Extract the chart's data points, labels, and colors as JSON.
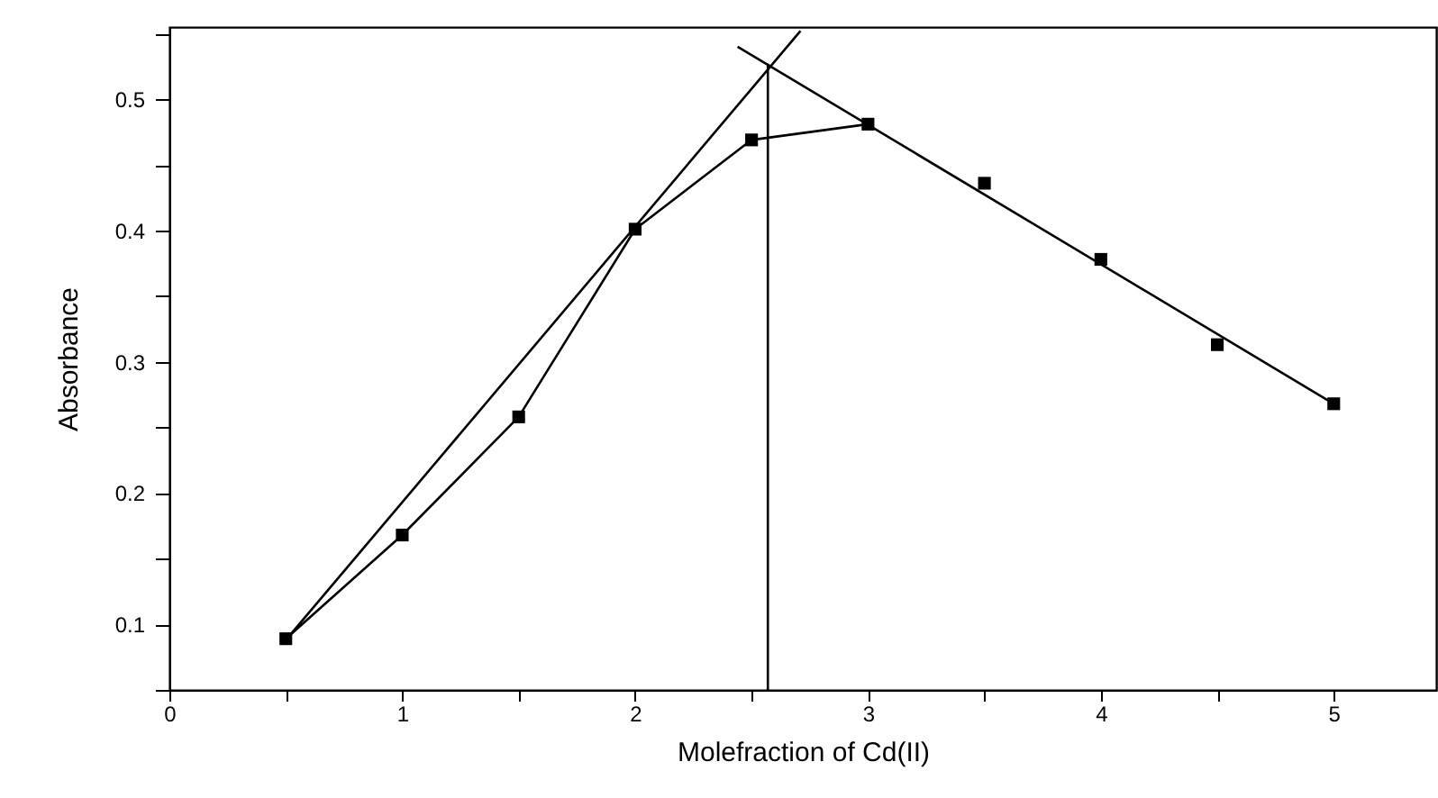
{
  "chart_data": {
    "type": "scatter",
    "xlabel": "Molefraction of  Cd(II)",
    "ylabel": "Absorbance",
    "xlim": [
      0,
      5.44
    ],
    "ylim": [
      0.05,
      0.555
    ],
    "xticks": [
      0,
      {
        "value": 0.5,
        "label": null
      },
      1,
      {
        "value": 1.5,
        "label": null
      },
      2,
      {
        "value": 2.5,
        "label": null
      },
      3,
      {
        "value": 3.5,
        "label": null
      },
      4,
      {
        "value": 4.5,
        "label": null
      },
      5
    ],
    "yticks": [
      {
        "value": 0.05,
        "label": null
      },
      0.1,
      {
        "value": 0.15,
        "label": null
      },
      0.2,
      {
        "value": 0.25,
        "label": null
      },
      0.3,
      {
        "value": 0.35,
        "label": null
      },
      0.4,
      {
        "value": 0.45,
        "label": null
      },
      0.5,
      {
        "value": 0.55,
        "label": null
      }
    ],
    "series": [
      {
        "type": "line",
        "marker": "none",
        "color": "#000000",
        "x": [
          0.5,
          1,
          1.5,
          2,
          2.5,
          3
        ],
        "values": [
          0.089,
          0.168,
          0.258,
          0.401,
          0.469,
          0.481
        ]
      },
      {
        "type": "line",
        "marker": "none",
        "color": "#000000",
        "x": [
          0.5,
          2.71
        ],
        "values": [
          0.088,
          0.552
        ]
      },
      {
        "type": "line",
        "marker": "none",
        "color": "#000000",
        "x": [
          2.44,
          5
        ],
        "values": [
          0.54,
          0.268
        ]
      },
      {
        "type": "line",
        "marker": "none",
        "color": "#000000",
        "x": [
          2.57,
          2.57
        ],
        "values": [
          0.05,
          0.527
        ]
      },
      {
        "marker": "square",
        "color": "#000000",
        "x": [
          0.5,
          1,
          1.5,
          2,
          2.5,
          3,
          3.5,
          4,
          4.5,
          5
        ],
        "values": [
          0.089,
          0.168,
          0.258,
          0.401,
          0.469,
          0.481,
          0.436,
          0.378,
          0.313,
          0.268
        ]
      }
    ]
  }
}
